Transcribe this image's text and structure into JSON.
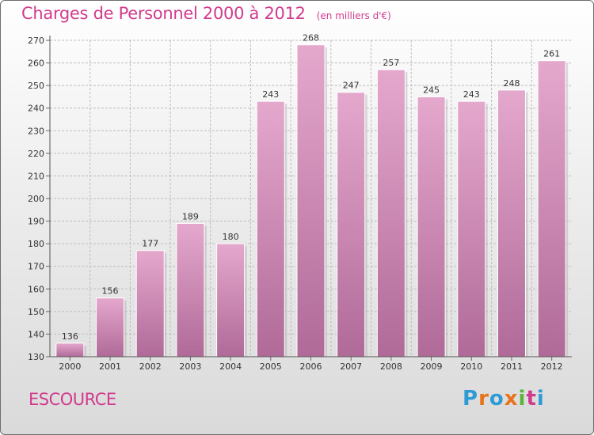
{
  "header": {
    "title": "Charges de Personnel 2000 à 2012",
    "subtitle": "(en milliers d'€)"
  },
  "footer": {
    "commune": "ESCOURCE",
    "logo_text": "Proxiti",
    "logo_colors": [
      "#2e9bd6",
      "#e8731c",
      "#2e9bd6",
      "#e8731c",
      "#5ab43a",
      "#d13b8e",
      "#2e9bd6"
    ]
  },
  "colors": {
    "title": "#d13b8e",
    "bar_top": "#e5a8cd",
    "bar_bottom": "#b06a98",
    "grid": "#bdbdbd"
  },
  "chart_data": {
    "type": "bar",
    "categories": [
      "2000",
      "2001",
      "2002",
      "2003",
      "2004",
      "2005",
      "2006",
      "2007",
      "2008",
      "2009",
      "2010",
      "2011",
      "2012"
    ],
    "values": [
      136,
      156,
      177,
      189,
      180,
      243,
      268,
      247,
      257,
      245,
      243,
      248,
      261
    ],
    "data_labels": [
      "136",
      "156",
      "177",
      "189",
      "180",
      "243",
      "268",
      "247",
      "257",
      "245",
      "243",
      "248",
      "261"
    ],
    "title": "Charges de Personnel 2000 à 2012",
    "ylim": [
      130,
      270
    ],
    "yticks": [
      130,
      140,
      150,
      160,
      170,
      180,
      190,
      200,
      210,
      220,
      230,
      240,
      250,
      260,
      270
    ],
    "grid": true
  }
}
